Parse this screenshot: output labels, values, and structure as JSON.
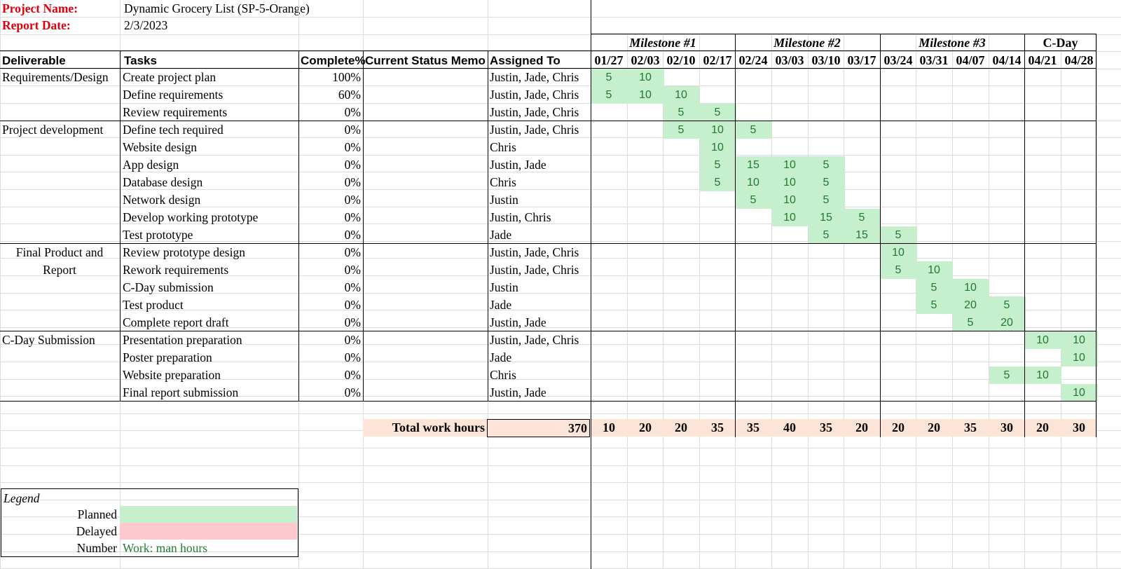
{
  "header": {
    "project_name_label": "Project Name:",
    "project_name_value": "Dynamic Grocery List (SP-5-Orange)",
    "report_date_label": "Report Date:",
    "report_date_value": "2/3/2023"
  },
  "columns": {
    "deliverable": "Deliverable",
    "tasks": "Tasks",
    "complete": "Complete%",
    "memo": "Current Status Memo",
    "assigned": "Assigned To"
  },
  "milestones": [
    {
      "label": "Milestone #1",
      "span": 4
    },
    {
      "label": "Milestone #2",
      "span": 4
    },
    {
      "label": "Milestone #3",
      "span": 4
    },
    {
      "label": "C-Day",
      "span": 2
    }
  ],
  "weeks": [
    "01/27",
    "02/03",
    "02/10",
    "02/17",
    "02/24",
    "03/03",
    "03/10",
    "03/17",
    "03/24",
    "03/31",
    "04/07",
    "04/14",
    "04/21",
    "04/28"
  ],
  "groups": [
    {
      "deliverable": [
        "Requirements/Design"
      ],
      "align": "left",
      "rows": 3
    },
    {
      "deliverable": [
        "Project development"
      ],
      "align": "left",
      "rows": 7
    },
    {
      "deliverable": [
        "Final Product and",
        "Report"
      ],
      "align": "center",
      "rows": 5
    },
    {
      "deliverable": [
        "C-Day Submission"
      ],
      "align": "left",
      "rows": 4
    }
  ],
  "tasks": [
    {
      "task": "Create project plan",
      "complete": "100%",
      "assigned": "Justin, Jade, Chris",
      "hours": [
        5,
        10,
        null,
        null,
        null,
        null,
        null,
        null,
        null,
        null,
        null,
        null,
        null,
        null
      ]
    },
    {
      "task": "Define requirements",
      "complete": "60%",
      "assigned": "Justin, Jade, Chris",
      "hours": [
        5,
        10,
        10,
        null,
        null,
        null,
        null,
        null,
        null,
        null,
        null,
        null,
        null,
        null
      ]
    },
    {
      "task": "Review requirements",
      "complete": "0%",
      "assigned": "Justin, Jade, Chris",
      "hours": [
        null,
        null,
        5,
        5,
        null,
        null,
        null,
        null,
        null,
        null,
        null,
        null,
        null,
        null
      ]
    },
    {
      "task": "Define tech required",
      "complete": "0%",
      "assigned": "Justin, Jade, Chris",
      "hours": [
        null,
        null,
        5,
        10,
        5,
        null,
        null,
        null,
        null,
        null,
        null,
        null,
        null,
        null
      ]
    },
    {
      "task": "Website design",
      "complete": "0%",
      "assigned": "Chris",
      "hours": [
        null,
        null,
        null,
        10,
        null,
        null,
        null,
        null,
        null,
        null,
        null,
        null,
        null,
        null
      ]
    },
    {
      "task": "App design",
      "complete": "0%",
      "assigned": "Justin, Jade",
      "hours": [
        null,
        null,
        null,
        5,
        15,
        10,
        5,
        null,
        null,
        null,
        null,
        null,
        null,
        null
      ]
    },
    {
      "task": "Database design",
      "complete": "0%",
      "assigned": "Chris",
      "hours": [
        null,
        null,
        null,
        5,
        10,
        10,
        5,
        null,
        null,
        null,
        null,
        null,
        null,
        null
      ]
    },
    {
      "task": "Network design",
      "complete": "0%",
      "assigned": "Justin",
      "hours": [
        null,
        null,
        null,
        null,
        5,
        10,
        5,
        null,
        null,
        null,
        null,
        null,
        null,
        null
      ]
    },
    {
      "task": "Develop working prototype",
      "complete": "0%",
      "assigned": "Justin, Chris",
      "hours": [
        null,
        null,
        null,
        null,
        null,
        10,
        15,
        5,
        null,
        null,
        null,
        null,
        null,
        null
      ]
    },
    {
      "task": "Test prototype",
      "complete": "0%",
      "assigned": "Jade",
      "hours": [
        null,
        null,
        null,
        null,
        null,
        null,
        5,
        15,
        5,
        null,
        null,
        null,
        null,
        null
      ]
    },
    {
      "task": "Review prototype design",
      "complete": "0%",
      "assigned": "Justin, Jade, Chris",
      "hours": [
        null,
        null,
        null,
        null,
        null,
        null,
        null,
        null,
        10,
        null,
        null,
        null,
        null,
        null
      ]
    },
    {
      "task": "Rework requirements",
      "complete": "0%",
      "assigned": "Justin, Jade, Chris",
      "hours": [
        null,
        null,
        null,
        null,
        null,
        null,
        null,
        null,
        5,
        10,
        null,
        null,
        null,
        null
      ]
    },
    {
      "task": "C-Day submission",
      "complete": "0%",
      "assigned": "Justin",
      "hours": [
        null,
        null,
        null,
        null,
        null,
        null,
        null,
        null,
        null,
        5,
        10,
        null,
        null,
        null
      ]
    },
    {
      "task": "Test product",
      "complete": "0%",
      "assigned": "Jade",
      "hours": [
        null,
        null,
        null,
        null,
        null,
        null,
        null,
        null,
        null,
        5,
        20,
        5,
        null,
        null
      ]
    },
    {
      "task": "Complete report draft",
      "complete": "0%",
      "assigned": "Justin, Jade",
      "hours": [
        null,
        null,
        null,
        null,
        null,
        null,
        null,
        null,
        null,
        null,
        5,
        20,
        null,
        null
      ]
    },
    {
      "task": "Presentation preparation",
      "complete": "0%",
      "assigned": "Justin, Jade, Chris",
      "hours": [
        null,
        null,
        null,
        null,
        null,
        null,
        null,
        null,
        null,
        null,
        null,
        null,
        10,
        10
      ]
    },
    {
      "task": "Poster preparation",
      "complete": "0%",
      "assigned": "Jade",
      "hours": [
        null,
        null,
        null,
        null,
        null,
        null,
        null,
        null,
        null,
        null,
        null,
        null,
        null,
        10
      ]
    },
    {
      "task": "Website preparation",
      "complete": "0%",
      "assigned": "Chris",
      "hours": [
        null,
        null,
        null,
        null,
        null,
        null,
        null,
        null,
        null,
        null,
        null,
        5,
        10,
        null
      ]
    },
    {
      "task": "Final report submission",
      "complete": "0%",
      "assigned": "Justin, Jade",
      "hours": [
        null,
        null,
        null,
        null,
        null,
        null,
        null,
        null,
        null,
        null,
        null,
        null,
        null,
        10
      ]
    }
  ],
  "totals": {
    "label": "Total work hours",
    "sum": "370",
    "weekly": [
      "10",
      "20",
      "20",
      "35",
      "35",
      "40",
      "35",
      "20",
      "20",
      "20",
      "35",
      "30",
      "20",
      "30"
    ]
  },
  "legend": {
    "title": "Legend",
    "planned": "Planned",
    "delayed": "Delayed",
    "number": "Number",
    "number_desc": "Work: man hours"
  },
  "colors": {
    "planned": "#c6efce",
    "delayed": "#ffc7ce",
    "total": "#fce4d6",
    "label_red": "#e0000d",
    "number_green": "#1f7a2e"
  }
}
